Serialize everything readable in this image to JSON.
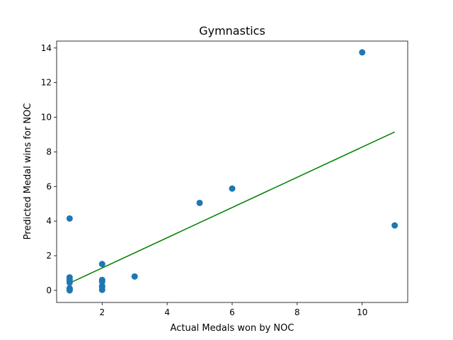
{
  "chart_data": {
    "type": "scatter",
    "title": "Gymnastics",
    "xlabel": "Actual Medals won by NOC",
    "ylabel": "Predicted Medal wins for NOC",
    "xlim": [
      0.6,
      11.4
    ],
    "ylim": [
      -0.7,
      14.4
    ],
    "xticks": [
      2,
      4,
      6,
      8,
      10
    ],
    "yticks": [
      0,
      2,
      4,
      6,
      8,
      10,
      12,
      14
    ],
    "grid": false,
    "points": {
      "color": "#1f77b4",
      "x": [
        1,
        1,
        1,
        1,
        1,
        1,
        1,
        1,
        2,
        2,
        2,
        2,
        2,
        2,
        3,
        5,
        6,
        10,
        11
      ],
      "y": [
        4.15,
        0.75,
        0.6,
        0.45,
        0.12,
        0.08,
        0.04,
        0.0,
        1.52,
        0.6,
        0.5,
        0.25,
        0.2,
        0.03,
        0.8,
        5.05,
        5.88,
        13.75,
        3.75
      ]
    },
    "fit_line": {
      "color": "#008000",
      "x": [
        1,
        11
      ],
      "y": [
        0.42,
        9.15
      ]
    }
  }
}
